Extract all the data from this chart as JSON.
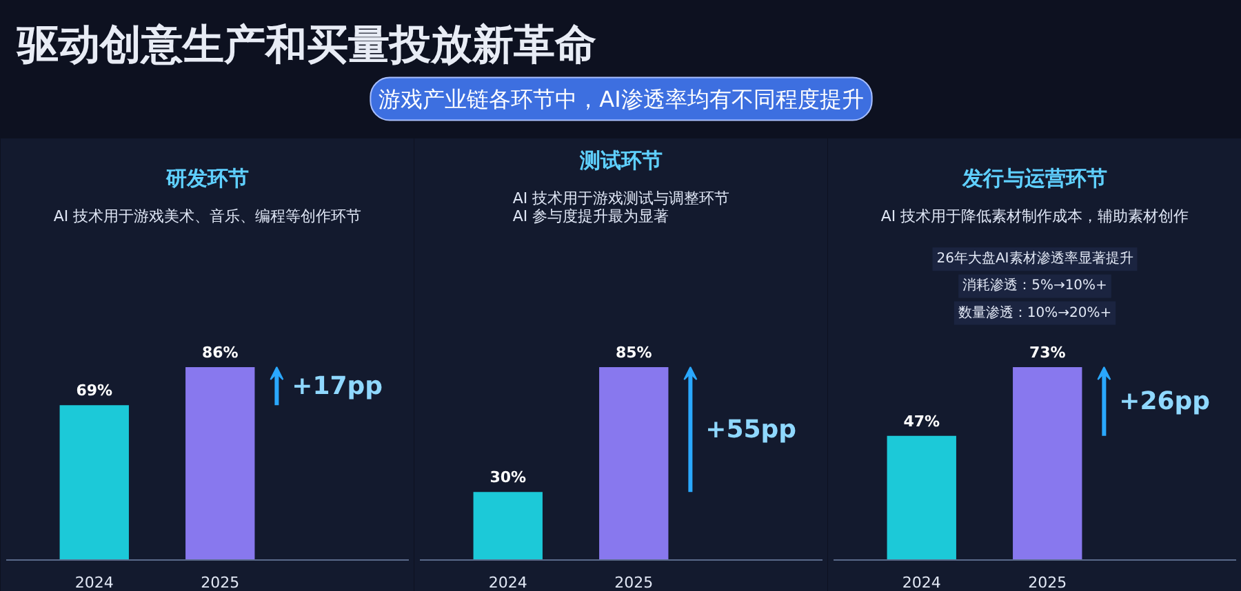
{
  "chart_data": [
    {
      "type": "other",
      "title": "驱动创意生产和买量投放新革命",
      "subtitle": "游戏产业链各环节中，AI渗透率均有不同程度提升"
    },
    {
      "type": "bar",
      "title": "研发环节",
      "subtitle": "AI 技术用于游戏美术、音乐、编程等创作环节",
      "categories": [
        "2024",
        "2025"
      ],
      "values": [
        69,
        86
      ],
      "colors": [
        "#1cc9d8",
        "#8878ee"
      ],
      "value_labels": [
        "69%",
        "86%"
      ],
      "annotations": [
        "+17pp"
      ],
      "tick_labels": "x"
    },
    {
      "type": "bar",
      "title": "测试环节",
      "subtitle": "AI 技术用于游戏测试与调整环节\nAI 参与度提升最为显著",
      "categories": [
        "2024",
        "2025"
      ],
      "values": [
        30,
        85
      ],
      "colors": [
        "#1cc9d8",
        "#8878ee"
      ],
      "value_labels": [
        "30%",
        "85%"
      ],
      "annotations": [
        "+55pp"
      ],
      "tick_labels": "x"
    },
    {
      "type": "bar",
      "title": "发行与运营环节",
      "subtitle": "AI 技术用于降低素材制作成本，辅助素材创作",
      "categories": [
        "2024",
        "2025"
      ],
      "values": [
        47,
        73
      ],
      "colors": [
        "#1cc9d8",
        "#8878ee"
      ],
      "value_labels": [
        "47%",
        "73%"
      ],
      "annotations": [
        "+26pp",
        "26年大盘AI素材渗透率显著提升",
        "消耗渗透：5%→10%+",
        "数量渗透：10%→20%+"
      ],
      "tick_labels": "x"
    }
  ]
}
